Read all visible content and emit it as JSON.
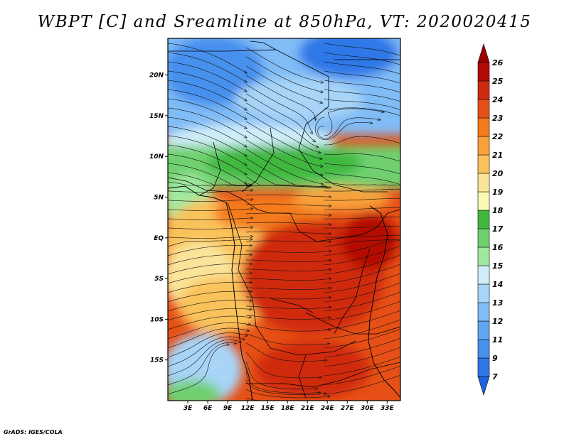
{
  "title": "WBPT [C] and Sreamline at 850hPa, VT: 2020020415",
  "footer": "GrADS: IGES/COLA",
  "map": {
    "lat_labels": [
      "20N",
      "15N",
      "10N",
      "5N",
      "EQ",
      "5S",
      "10S",
      "15S"
    ],
    "lat_values": [
      20,
      15,
      10,
      5,
      0,
      -5,
      -10,
      -15
    ],
    "lon_labels": [
      "3E",
      "6E",
      "9E",
      "12E",
      "15E",
      "18E",
      "21E",
      "24E",
      "27E",
      "30E",
      "33E"
    ],
    "lon_values": [
      3,
      6,
      9,
      12,
      15,
      18,
      21,
      24,
      27,
      30,
      33
    ],
    "lon_range": [
      0,
      35
    ],
    "lat_range": [
      -20,
      24.5
    ]
  },
  "colorbar": {
    "labels": [
      "7",
      "9",
      "11",
      "12",
      "13",
      "14",
      "15",
      "16",
      "17",
      "18",
      "19",
      "20",
      "21",
      "22",
      "23",
      "24",
      "25",
      "26"
    ],
    "colors": [
      "#1e64e0",
      "#2e78e8",
      "#4690ee",
      "#60a6f2",
      "#80bcf6",
      "#a8d4f8",
      "#d0eefa",
      "#a0e8a0",
      "#70d070",
      "#40b840",
      "#fafab4",
      "#fae49a",
      "#fac25a",
      "#f8a03a",
      "#f47a1a",
      "#e65016",
      "#d02a10",
      "#b40a06",
      "#9e0000"
    ]
  }
}
